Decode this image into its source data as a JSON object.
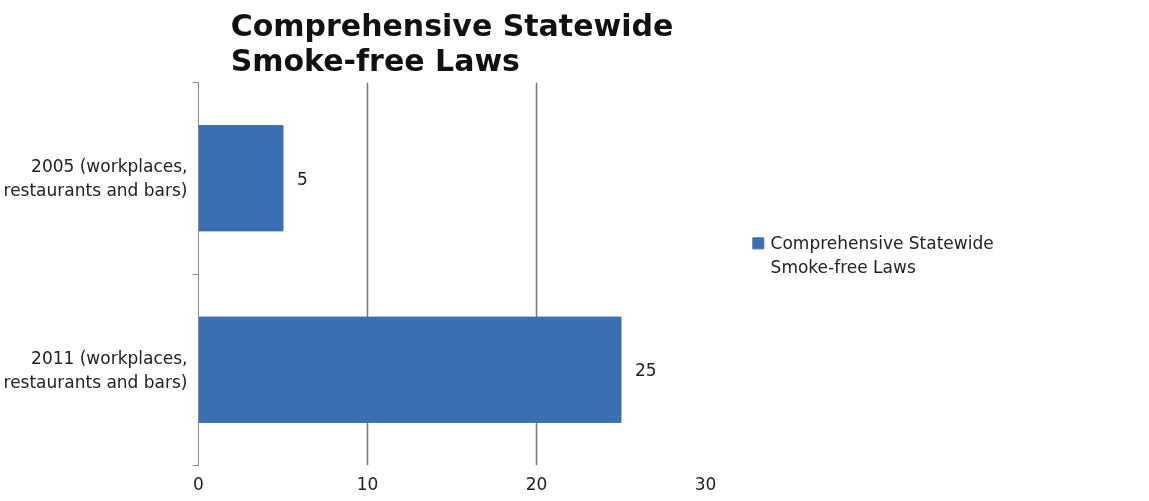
{
  "chart_data": {
    "type": "bar",
    "orientation": "horizontal",
    "title": "Comprehensive Statewide Smoke-free Laws",
    "categories": [
      "2005 (workplaces, restaurants and bars)",
      "2011 (workplaces, restaurants and bars)"
    ],
    "series": [
      {
        "name": "Comprehensive Statewide Smoke-free Laws",
        "color": "#3b6fb2",
        "values": [
          5,
          25
        ]
      }
    ],
    "xlim": [
      0,
      30
    ],
    "xticks": [
      0,
      10,
      20,
      30
    ],
    "grid": "x",
    "legend": "right",
    "data_labels": true
  }
}
